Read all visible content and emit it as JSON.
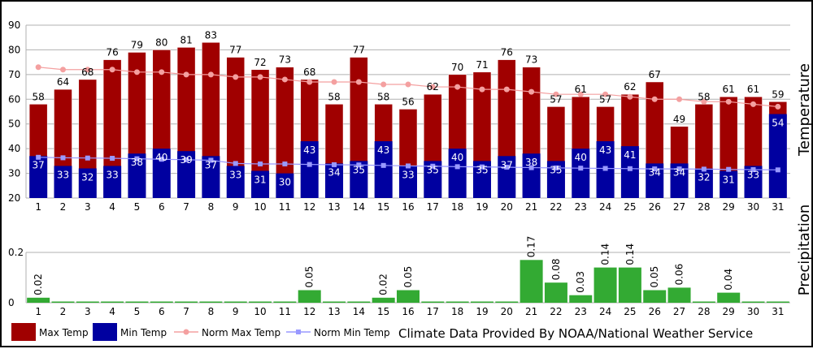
{
  "chart_data": [
    {
      "type": "bar",
      "ylabel": "Temperature",
      "ylim": [
        20,
        90
      ],
      "yticks": [
        20,
        30,
        40,
        50,
        60,
        70,
        80,
        90
      ],
      "grid": true,
      "categories": [
        "1",
        "2",
        "3",
        "4",
        "5",
        "6",
        "7",
        "8",
        "9",
        "10",
        "11",
        "12",
        "13",
        "14",
        "15",
        "16",
        "17",
        "18",
        "19",
        "20",
        "21",
        "22",
        "23",
        "24",
        "25",
        "26",
        "27",
        "28",
        "29",
        "30",
        "31"
      ],
      "series": [
        {
          "name": "Max Temp",
          "color": "#a00000",
          "values": [
            58,
            64,
            68,
            76,
            79,
            80,
            81,
            83,
            77,
            72,
            73,
            68,
            58,
            77,
            58,
            56,
            62,
            70,
            71,
            76,
            73,
            57,
            61,
            57,
            62,
            67,
            49,
            58,
            61,
            61,
            59
          ]
        },
        {
          "name": "Min Temp",
          "color": "#0000a0",
          "values": [
            37,
            33,
            32,
            33,
            38,
            40,
            39,
            37,
            33,
            31,
            30,
            43,
            34,
            35,
            43,
            33,
            35,
            40,
            35,
            37,
            38,
            35,
            40,
            43,
            41,
            34,
            34,
            32,
            31,
            33,
            54
          ]
        },
        {
          "name": "Norm Max Temp",
          "color": "#f4a0a0",
          "values": [
            73,
            72,
            72,
            72,
            71,
            71,
            70,
            70,
            69,
            69,
            68,
            67,
            67,
            67,
            66,
            66,
            65,
            65,
            64,
            64,
            63,
            62,
            62,
            62,
            61,
            60,
            60,
            59,
            59,
            58,
            57
          ]
        },
        {
          "name": "Norm Min Temp",
          "color": "#9999ff",
          "values": [
            36.5,
            36.3,
            36.2,
            36.1,
            35.9,
            35.7,
            35.5,
            35.3,
            34.0,
            33.8,
            33.8,
            33.6,
            33.5,
            33.4,
            33.2,
            33.0,
            32.9,
            32.7,
            32.6,
            32.5,
            32.3,
            32.2,
            32.1,
            32.0,
            31.9,
            31.8,
            31.8,
            31.7,
            31.6,
            31.5,
            31.4
          ]
        }
      ]
    },
    {
      "type": "bar",
      "ylabel": "Precipitation",
      "ylim": [
        0,
        0.2
      ],
      "yticks": [
        "0",
        "0.2"
      ],
      "categories": [
        "1",
        "2",
        "3",
        "4",
        "5",
        "6",
        "7",
        "8",
        "9",
        "10",
        "11",
        "12",
        "13",
        "14",
        "15",
        "16",
        "17",
        "18",
        "19",
        "20",
        "21",
        "22",
        "23",
        "24",
        "25",
        "26",
        "27",
        "28",
        "29",
        "30",
        "31"
      ],
      "series": [
        {
          "name": "Precipitation",
          "color": "#33aa33",
          "values": [
            0.02,
            0,
            0,
            0,
            0,
            0,
            0,
            0,
            0,
            0,
            0,
            0.05,
            0,
            0,
            0.02,
            0.05,
            0,
            0,
            0,
            0,
            0.17,
            0.08,
            0.03,
            0.14,
            0.14,
            0.05,
            0.06,
            0,
            0.04,
            0,
            0
          ],
          "labels": [
            "0.02",
            "",
            "",
            "",
            "",
            "",
            "",
            "",
            "",
            "",
            "",
            "0.05",
            "",
            "",
            "0.02",
            "0.05",
            "",
            "",
            "",
            "",
            "0.17",
            "0.08",
            "0.03",
            "0.14",
            "0.14",
            "0.05",
            "0.06",
            "",
            "0.04",
            "",
            ""
          ]
        }
      ]
    }
  ],
  "legend": [
    {
      "label": "Max Temp",
      "kind": "box",
      "color": "#a00000"
    },
    {
      "label": "Min Temp",
      "kind": "box",
      "color": "#0000a0"
    },
    {
      "label": "Norm Max Temp",
      "kind": "line",
      "color": "#f4a0a0"
    },
    {
      "label": "Norm Min Temp",
      "kind": "line",
      "color": "#9999ff"
    }
  ],
  "credit": "Climate Data Provided By NOAA/National Weather Service"
}
